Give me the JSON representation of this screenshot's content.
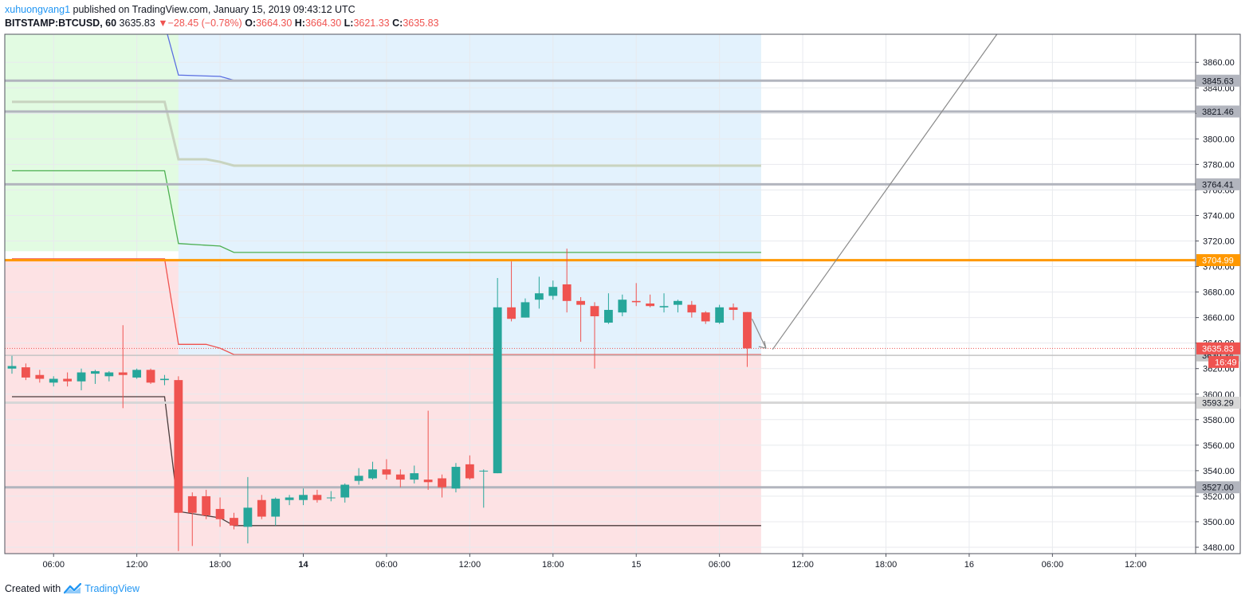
{
  "header": {
    "author": "xuhuongvang1",
    "published_text": "published on TradingView.com, January 15, 2019 09:43:12 UTC",
    "symbol": "BITSTAMP:BTCUSD, 60",
    "last": "3635.83",
    "change_arrow": "▼",
    "change": "−28.45 (−0.78%)",
    "o_label": "O:",
    "o_value": "3664.30",
    "h_label": "H:",
    "h_value": "3664.30",
    "l_label": "L:",
    "l_value": "3621.33",
    "c_label": "C:",
    "c_value": "3635.83"
  },
  "footer": {
    "created_with": "Created with",
    "brand": "TradingView",
    "logo_icon": "tradingview-logo-icon"
  },
  "colors": {
    "up": "#26a69a",
    "down": "#ef5350",
    "orange": "#ff9800",
    "grey_level": "#b2b5be",
    "green_zone": "#e2fbe2",
    "blue_zone": "#e3f2fd",
    "red_zone": "#fde2e4",
    "projection": "#8a8a8a"
  },
  "chart_data": {
    "type": "candlestick",
    "interval_minutes": 60,
    "ylim": [
      3475,
      3882
    ],
    "time_range": [
      "2019-01-13T03:00",
      "2019-01-16T15:00"
    ],
    "y_ticks": [
      3480,
      3500,
      3520,
      3540,
      3560,
      3580,
      3600,
      3620,
      3640,
      3660,
      3680,
      3700,
      3720,
      3740,
      3760,
      3780,
      3800,
      3820,
      3840,
      3860
    ],
    "y_tick_labels": [
      "3480.00",
      "3500.00",
      "3520.00",
      "3540.00",
      "3560.00",
      "3580.00",
      "3600.00",
      "3620.00",
      "3640.00",
      "3660.00",
      "3680.00",
      "3700.00",
      "3720.00",
      "3740.00",
      "3760.00",
      "3780.00",
      "3800.00",
      "3820.00",
      "3840.00",
      "3860.00"
    ],
    "x_ticks": [
      {
        "t": "2019-01-13T06:00",
        "label": "06:00",
        "bold": false
      },
      {
        "t": "2019-01-13T12:00",
        "label": "12:00",
        "bold": false
      },
      {
        "t": "2019-01-13T18:00",
        "label": "18:00",
        "bold": false
      },
      {
        "t": "2019-01-14T00:00",
        "label": "14",
        "bold": true
      },
      {
        "t": "2019-01-14T06:00",
        "label": "06:00",
        "bold": false
      },
      {
        "t": "2019-01-14T12:00",
        "label": "12:00",
        "bold": false
      },
      {
        "t": "2019-01-14T18:00",
        "label": "18:00",
        "bold": false
      },
      {
        "t": "2019-01-15T00:00",
        "label": "15",
        "bold": false
      },
      {
        "t": "2019-01-15T06:00",
        "label": "06:00",
        "bold": false
      },
      {
        "t": "2019-01-15T12:00",
        "label": "12:00",
        "bold": false
      },
      {
        "t": "2019-01-15T18:00",
        "label": "18:00",
        "bold": false
      },
      {
        "t": "2019-01-16T00:00",
        "label": "16",
        "bold": false
      },
      {
        "t": "2019-01-16T06:00",
        "label": "06:00",
        "bold": false
      },
      {
        "t": "2019-01-16T12:00",
        "label": "12:00",
        "bold": false
      }
    ],
    "candles": [
      {
        "t": "2019-01-13T03:00",
        "o": 3620,
        "h": 3630,
        "l": 3616,
        "c": 3622
      },
      {
        "t": "2019-01-13T04:00",
        "o": 3621,
        "h": 3624,
        "l": 3611,
        "c": 3613
      },
      {
        "t": "2019-01-13T05:00",
        "o": 3615,
        "h": 3619,
        "l": 3609,
        "c": 3612
      },
      {
        "t": "2019-01-13T06:00",
        "o": 3609,
        "h": 3614,
        "l": 3606,
        "c": 3612
      },
      {
        "t": "2019-01-13T07:00",
        "o": 3612,
        "h": 3617,
        "l": 3606,
        "c": 3610
      },
      {
        "t": "2019-01-13T08:00",
        "o": 3610,
        "h": 3620,
        "l": 3603,
        "c": 3617
      },
      {
        "t": "2019-01-13T09:00",
        "o": 3616,
        "h": 3619,
        "l": 3608,
        "c": 3618
      },
      {
        "t": "2019-01-13T10:00",
        "o": 3614,
        "h": 3618,
        "l": 3610,
        "c": 3617
      },
      {
        "t": "2019-01-13T11:00",
        "o": 3617,
        "h": 3654,
        "l": 3589,
        "c": 3615
      },
      {
        "t": "2019-01-13T12:00",
        "o": 3613,
        "h": 3620,
        "l": 3612,
        "c": 3619
      },
      {
        "t": "2019-01-13T13:00",
        "o": 3619,
        "h": 3620,
        "l": 3608,
        "c": 3609
      },
      {
        "t": "2019-01-13T14:00",
        "o": 3611,
        "h": 3615,
        "l": 3607,
        "c": 3612
      },
      {
        "t": "2019-01-13T15:00",
        "o": 3611,
        "h": 3614,
        "l": 3477,
        "c": 3507
      },
      {
        "t": "2019-01-13T16:00",
        "o": 3520,
        "h": 3523,
        "l": 3481,
        "c": 3507
      },
      {
        "t": "2019-01-13T17:00",
        "o": 3520,
        "h": 3525,
        "l": 3502,
        "c": 3505
      },
      {
        "t": "2019-01-13T18:00",
        "o": 3510,
        "h": 3519,
        "l": 3496,
        "c": 3502
      },
      {
        "t": "2019-01-13T19:00",
        "o": 3503,
        "h": 3507,
        "l": 3494,
        "c": 3497
      },
      {
        "t": "2019-01-13T20:00",
        "o": 3496,
        "h": 3535,
        "l": 3483,
        "c": 3511
      },
      {
        "t": "2019-01-13T21:00",
        "o": 3517,
        "h": 3521,
        "l": 3502,
        "c": 3504
      },
      {
        "t": "2019-01-13T22:00",
        "o": 3504,
        "h": 3519,
        "l": 3497,
        "c": 3518
      },
      {
        "t": "2019-01-13T23:00",
        "o": 3517,
        "h": 3521,
        "l": 3513,
        "c": 3519
      },
      {
        "t": "2019-01-14T00:00",
        "o": 3517,
        "h": 3526,
        "l": 3513,
        "c": 3521
      },
      {
        "t": "2019-01-14T01:00",
        "o": 3521,
        "h": 3525,
        "l": 3515,
        "c": 3517
      },
      {
        "t": "2019-01-14T02:00",
        "o": 3519,
        "h": 3524,
        "l": 3516,
        "c": 3519
      },
      {
        "t": "2019-01-14T03:00",
        "o": 3519,
        "h": 3530,
        "l": 3515,
        "c": 3529
      },
      {
        "t": "2019-01-14T04:00",
        "o": 3532,
        "h": 3542,
        "l": 3529,
        "c": 3536
      },
      {
        "t": "2019-01-14T05:00",
        "o": 3534,
        "h": 3547,
        "l": 3533,
        "c": 3541
      },
      {
        "t": "2019-01-14T06:00",
        "o": 3541,
        "h": 3549,
        "l": 3533,
        "c": 3537
      },
      {
        "t": "2019-01-14T07:00",
        "o": 3537,
        "h": 3541,
        "l": 3527,
        "c": 3533
      },
      {
        "t": "2019-01-14T08:00",
        "o": 3533,
        "h": 3544,
        "l": 3530,
        "c": 3538
      },
      {
        "t": "2019-01-14T09:00",
        "o": 3533,
        "h": 3587,
        "l": 3525,
        "c": 3531
      },
      {
        "t": "2019-01-14T10:00",
        "o": 3534,
        "h": 3537,
        "l": 3519,
        "c": 3527
      },
      {
        "t": "2019-01-14T11:00",
        "o": 3526,
        "h": 3546,
        "l": 3523,
        "c": 3543
      },
      {
        "t": "2019-01-14T12:00",
        "o": 3545,
        "h": 3552,
        "l": 3533,
        "c": 3534
      },
      {
        "t": "2019-01-14T13:00",
        "o": 3540,
        "h": 3541,
        "l": 3511,
        "c": 3540
      },
      {
        "t": "2019-01-14T14:00",
        "o": 3538,
        "h": 3691,
        "l": 3538,
        "c": 3668
      },
      {
        "t": "2019-01-14T15:00",
        "o": 3668,
        "h": 3704,
        "l": 3657,
        "c": 3659
      },
      {
        "t": "2019-01-14T16:00",
        "o": 3660,
        "h": 3675,
        "l": 3660,
        "c": 3672
      },
      {
        "t": "2019-01-14T17:00",
        "o": 3674,
        "h": 3692,
        "l": 3667,
        "c": 3679
      },
      {
        "t": "2019-01-14T18:00",
        "o": 3677,
        "h": 3689,
        "l": 3674,
        "c": 3684
      },
      {
        "t": "2019-01-14T19:00",
        "o": 3686,
        "h": 3714,
        "l": 3664,
        "c": 3673
      },
      {
        "t": "2019-01-14T20:00",
        "o": 3673,
        "h": 3676,
        "l": 3641,
        "c": 3670
      },
      {
        "t": "2019-01-14T21:00",
        "o": 3669,
        "h": 3672,
        "l": 3620,
        "c": 3661
      },
      {
        "t": "2019-01-14T22:00",
        "o": 3656,
        "h": 3679,
        "l": 3655,
        "c": 3666
      },
      {
        "t": "2019-01-14T23:00",
        "o": 3664,
        "h": 3678,
        "l": 3661,
        "c": 3674
      },
      {
        "t": "2019-01-15T00:00",
        "o": 3673,
        "h": 3687,
        "l": 3669,
        "c": 3672
      },
      {
        "t": "2019-01-15T01:00",
        "o": 3671,
        "h": 3678,
        "l": 3668,
        "c": 3669
      },
      {
        "t": "2019-01-15T02:00",
        "o": 3668,
        "h": 3679,
        "l": 3664,
        "c": 3669
      },
      {
        "t": "2019-01-15T03:00",
        "o": 3670,
        "h": 3674,
        "l": 3664,
        "c": 3673
      },
      {
        "t": "2019-01-15T04:00",
        "o": 3670,
        "h": 3673,
        "l": 3660,
        "c": 3664
      },
      {
        "t": "2019-01-15T05:00",
        "o": 3664,
        "h": 3665,
        "l": 3655,
        "c": 3657
      },
      {
        "t": "2019-01-15T06:00",
        "o": 3656,
        "h": 3670,
        "l": 3655,
        "c": 3668
      },
      {
        "t": "2019-01-15T07:00",
        "o": 3668,
        "h": 3671,
        "l": 3658,
        "c": 3666
      },
      {
        "t": "2019-01-15T08:00",
        "o": 3664.3,
        "h": 3664.3,
        "l": 3621.33,
        "c": 3635.83
      }
    ],
    "zones": [
      {
        "name": "green",
        "top": 3882,
        "bottom": 3712,
        "from": "2019-01-13T03:00",
        "to": "2019-01-15T09:00",
        "color": "#e2fbe2"
      },
      {
        "name": "blue",
        "top": 3882,
        "bottom": 3631,
        "from": "2019-01-13T15:00",
        "to": "2019-01-15T09:00",
        "color": "#e3f2fd"
      },
      {
        "name": "red",
        "top": 3706,
        "bottom": 3475,
        "from": "2019-01-13T03:00",
        "to": "2019-01-15T09:00",
        "color": "#fde2e4"
      }
    ],
    "step_lines": [
      {
        "color": "#5b6ee1",
        "width": 1.3,
        "points": [
          [
            "2019-01-13T14:00",
            3890
          ],
          [
            "2019-01-13T15:00",
            3850
          ],
          [
            "2019-01-13T18:00",
            3849
          ],
          [
            "2019-01-13T19:00",
            3846
          ],
          [
            "2019-01-15T09:00",
            3846
          ]
        ]
      },
      {
        "color": "#c8d4c0",
        "width": 3,
        "points": [
          [
            "2019-01-13T03:00",
            3829
          ],
          [
            "2019-01-13T14:00",
            3829
          ],
          [
            "2019-01-13T15:00",
            3784
          ],
          [
            "2019-01-13T17:00",
            3784
          ],
          [
            "2019-01-13T18:00",
            3782
          ],
          [
            "2019-01-13T19:00",
            3779
          ],
          [
            "2019-01-15T09:00",
            3779
          ]
        ]
      },
      {
        "color": "#4caf50",
        "width": 1.3,
        "points": [
          [
            "2019-01-13T03:00",
            3775
          ],
          [
            "2019-01-13T14:00",
            3775
          ],
          [
            "2019-01-13T15:00",
            3718
          ],
          [
            "2019-01-13T18:00",
            3716
          ],
          [
            "2019-01-13T19:00",
            3711
          ],
          [
            "2019-01-15T09:00",
            3711
          ]
        ]
      },
      {
        "color": "#ef5350",
        "width": 1.3,
        "points": [
          [
            "2019-01-13T03:00",
            3706
          ],
          [
            "2019-01-13T14:00",
            3706
          ],
          [
            "2019-01-13T15:00",
            3639
          ],
          [
            "2019-01-13T17:00",
            3639
          ],
          [
            "2019-01-13T18:00",
            3636
          ],
          [
            "2019-01-13T19:00",
            3631
          ],
          [
            "2019-01-15T09:00",
            3631
          ]
        ]
      },
      {
        "color": "#4a3c3c",
        "width": 1.3,
        "points": [
          [
            "2019-01-13T03:00",
            3598
          ],
          [
            "2019-01-13T14:00",
            3598
          ],
          [
            "2019-01-13T15:00",
            3508
          ],
          [
            "2019-01-13T18:00",
            3503
          ],
          [
            "2019-01-13T19:00",
            3497
          ],
          [
            "2019-01-15T09:00",
            3497
          ]
        ]
      }
    ],
    "levels": [
      {
        "value": 3845.63,
        "label": "3845.63",
        "color": "#b2b5be",
        "text_color": "#131722",
        "width": 3
      },
      {
        "value": 3821.46,
        "label": "3821.46",
        "color": "#b2b5be",
        "text_color": "#131722",
        "width": 3
      },
      {
        "value": 3764.41,
        "label": "3764.41",
        "color": "#b2b5be",
        "text_color": "#131722",
        "width": 3
      },
      {
        "value": 3704.99,
        "label": "3704.99",
        "color": "#ff9800",
        "text_color": "#ffffff",
        "width": 3
      },
      {
        "value": 3630.34,
        "label": "3630.34",
        "color": "#c4c4c4",
        "text_color": "#131722",
        "width": 1.5
      },
      {
        "value": 3593.29,
        "label": "3593.29",
        "color": "#d7d7d7",
        "text_color": "#131722",
        "width": 3
      },
      {
        "value": 3527.0,
        "label": "3527.00",
        "color": "#b2b5be",
        "text_color": "#131722",
        "width": 3
      }
    ],
    "price_line": {
      "value": 3635.83,
      "label": "3635.83",
      "color": "#ef5350",
      "countdown": "16:49"
    },
    "projection": {
      "arrow": [
        [
          "2019-01-15T08:00",
          3659
        ],
        [
          "2019-01-15T09:00",
          3636
        ]
      ],
      "line": [
        [
          "2019-01-15T10:00",
          3635
        ],
        [
          "2019-01-16T02:00",
          3882
        ]
      ]
    }
  }
}
